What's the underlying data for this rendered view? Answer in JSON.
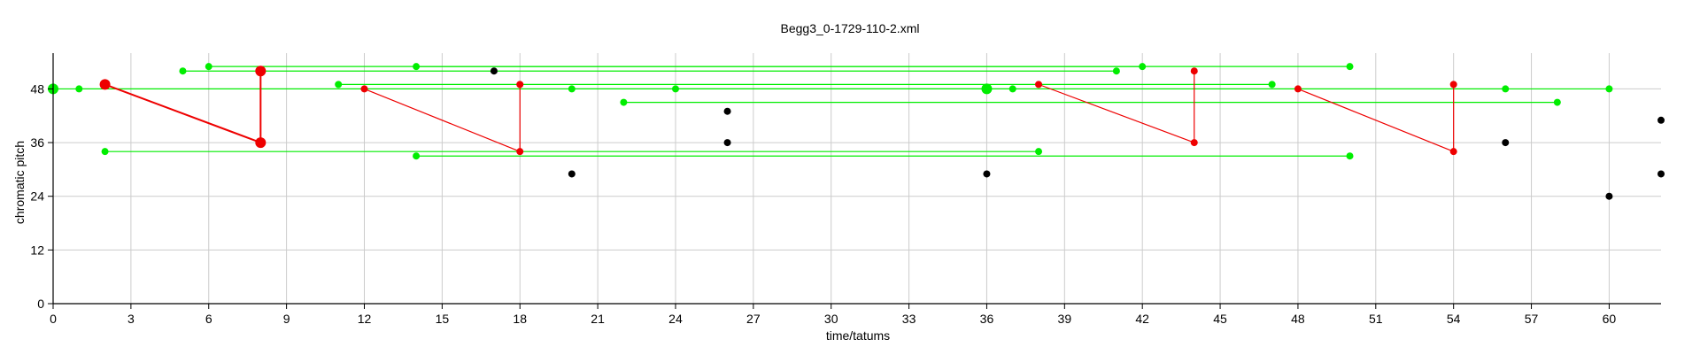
{
  "chart_data": {
    "type": "scatter",
    "title": "Begg3_0-1729-110-2.xml",
    "xlabel": "time/tatums",
    "ylabel": "chromatic pitch",
    "xlim": [
      0,
      62
    ],
    "ylim": [
      0,
      56
    ],
    "x_ticks": [
      0,
      3,
      6,
      9,
      12,
      15,
      18,
      21,
      24,
      27,
      30,
      33,
      36,
      39,
      42,
      45,
      48,
      51,
      54,
      57,
      60
    ],
    "y_ticks": [
      0,
      12,
      24,
      36,
      48
    ],
    "grid": true,
    "colors": {
      "green": "#00ee00",
      "red": "#ee0000",
      "black": "#000000"
    },
    "green_links": [
      [
        0,
        48,
        60,
        48
      ],
      [
        1,
        48,
        36,
        48
      ],
      [
        2,
        34,
        38,
        34
      ],
      [
        5,
        52,
        41,
        52
      ],
      [
        6,
        53,
        50,
        53
      ],
      [
        11,
        49,
        47,
        49
      ],
      [
        14,
        53,
        42,
        53
      ],
      [
        14,
        33,
        50,
        33
      ],
      [
        20,
        48,
        56,
        48
      ],
      [
        22,
        45,
        58,
        45
      ],
      [
        24,
        48,
        37,
        48
      ]
    ],
    "red_links": [
      [
        2,
        49,
        8,
        36
      ],
      [
        8,
        52,
        8,
        36
      ],
      [
        12,
        48,
        18,
        34
      ],
      [
        18,
        49,
        18,
        34
      ],
      [
        38,
        49,
        44,
        36
      ],
      [
        44,
        52,
        44,
        36
      ],
      [
        48,
        48,
        54,
        34
      ],
      [
        54,
        49,
        54,
        34
      ]
    ],
    "green_points": [
      [
        0,
        48,
        "large"
      ],
      [
        1,
        48,
        "small"
      ],
      [
        2,
        34,
        "small"
      ],
      [
        5,
        52,
        "small"
      ],
      [
        6,
        53,
        "small"
      ],
      [
        11,
        49,
        "small"
      ],
      [
        14,
        53,
        "small"
      ],
      [
        14,
        33,
        "small"
      ],
      [
        20,
        48,
        "small"
      ],
      [
        22,
        45,
        "small"
      ],
      [
        24,
        48,
        "small"
      ],
      [
        36,
        48,
        "large"
      ],
      [
        37,
        48,
        "small"
      ],
      [
        38,
        34,
        "small"
      ],
      [
        41,
        52,
        "small"
      ],
      [
        42,
        53,
        "small"
      ],
      [
        47,
        49,
        "small"
      ],
      [
        50,
        53,
        "small"
      ],
      [
        50,
        33,
        "small"
      ],
      [
        56,
        48,
        "small"
      ],
      [
        58,
        45,
        "small"
      ],
      [
        60,
        48,
        "small"
      ]
    ],
    "red_points": [
      [
        2,
        49,
        "large"
      ],
      [
        8,
        52,
        "large"
      ],
      [
        8,
        36,
        "large"
      ],
      [
        12,
        48,
        "small"
      ],
      [
        18,
        49,
        "small"
      ],
      [
        18,
        34,
        "small"
      ],
      [
        38,
        49,
        "small"
      ],
      [
        44,
        52,
        "small"
      ],
      [
        44,
        36,
        "small"
      ],
      [
        48,
        48,
        "small"
      ],
      [
        54,
        49,
        "small"
      ],
      [
        54,
        34,
        "small"
      ]
    ],
    "black_points": [
      [
        17,
        52,
        "small"
      ],
      [
        20,
        29,
        "small"
      ],
      [
        26,
        43,
        "small"
      ],
      [
        26,
        36,
        "small"
      ],
      [
        36,
        29,
        "small"
      ],
      [
        56,
        36,
        "small"
      ],
      [
        60,
        24,
        "small"
      ],
      [
        62,
        41,
        "small"
      ],
      [
        62,
        29,
        "small"
      ]
    ]
  }
}
